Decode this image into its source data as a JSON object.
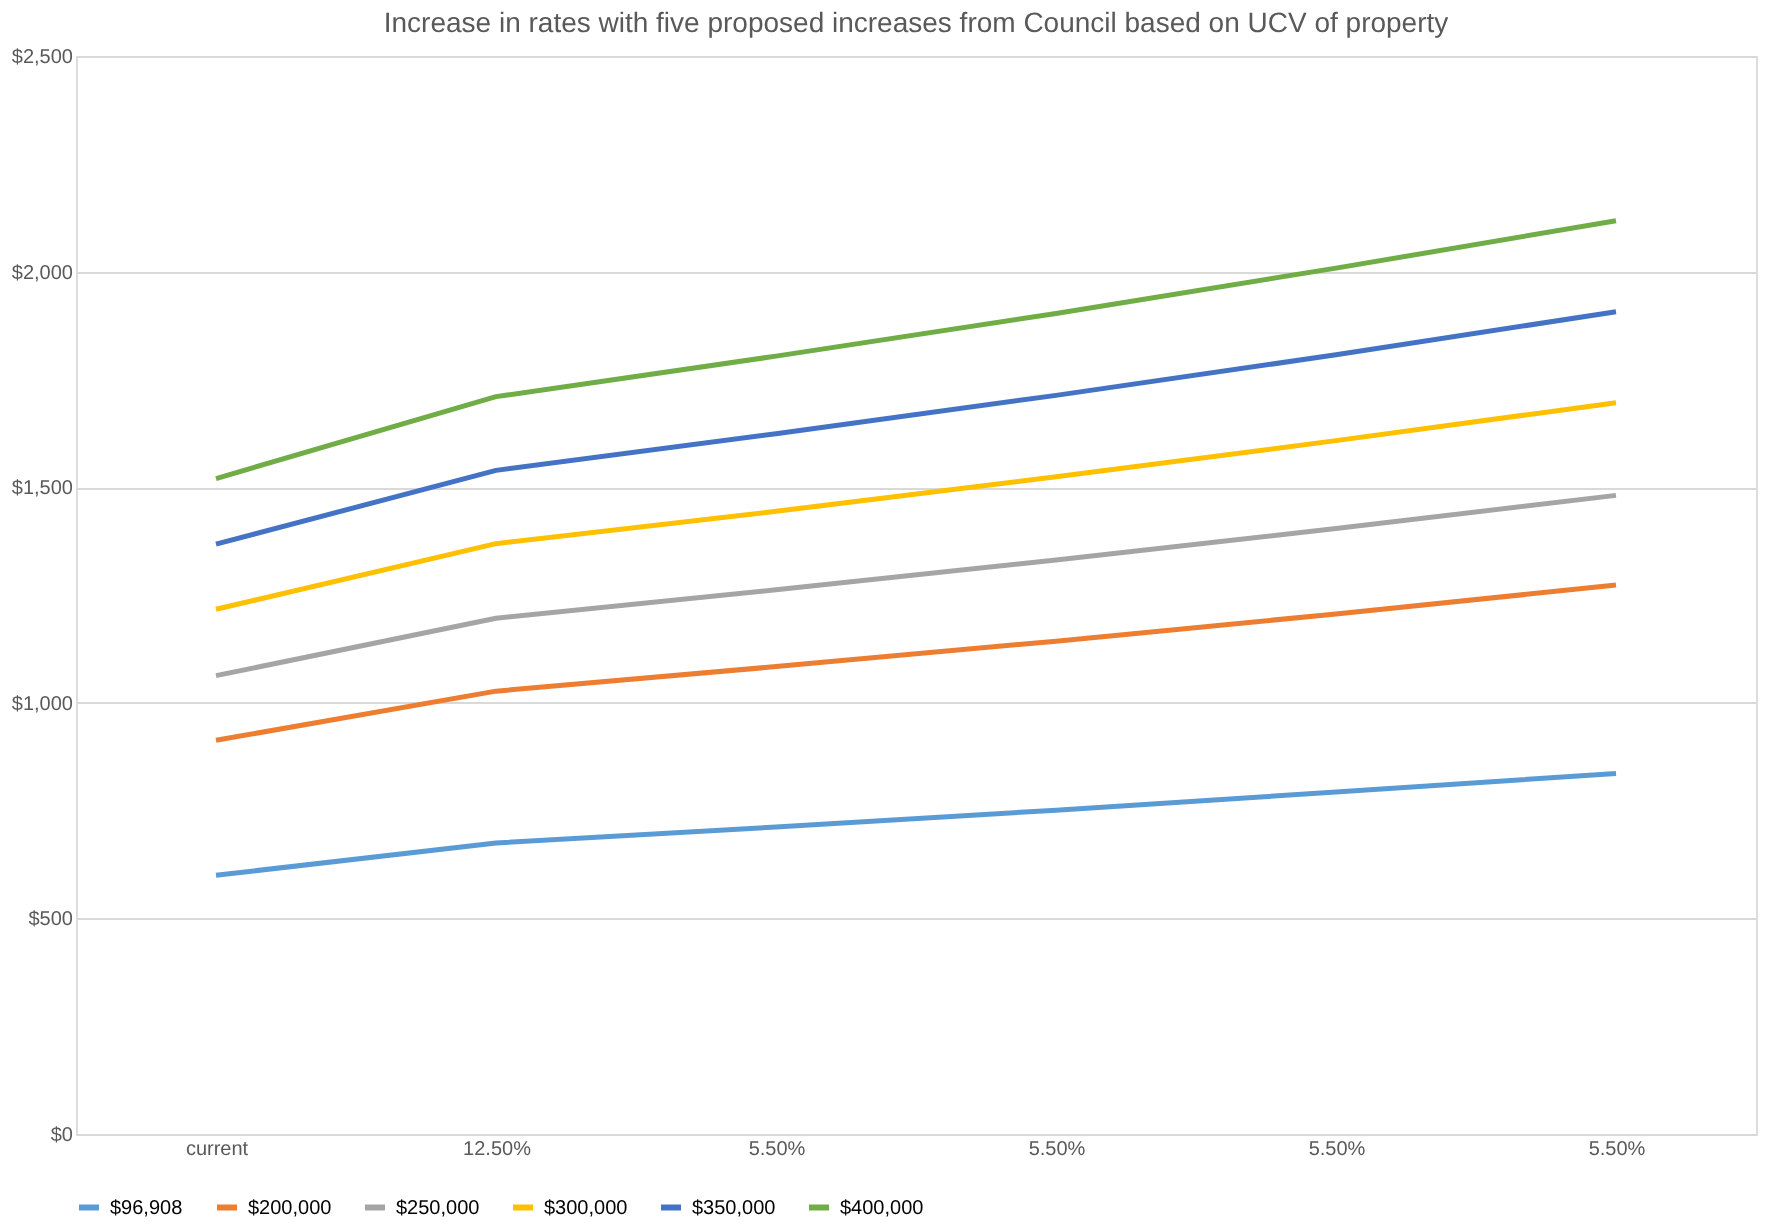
{
  "chart_data": {
    "type": "line",
    "title": "Increase in rates with five proposed increases  from Council based on UCV of property",
    "categories": [
      "current",
      "12.50%",
      "5.50%",
      "5.50%",
      "5.50%",
      "5.50%"
    ],
    "ylim": [
      0,
      2500
    ],
    "yticks": [
      {
        "value": 0,
        "label": "$0"
      },
      {
        "value": 500,
        "label": "$500"
      },
      {
        "value": 1000,
        "label": "$1,000"
      },
      {
        "value": 1500,
        "label": "$1,500"
      },
      {
        "value": 2000,
        "label": "$2,000"
      },
      {
        "value": 2500,
        "label": "$2,500"
      }
    ],
    "grid": "y",
    "legend": "bottom",
    "marker": "none",
    "line_style": "solid",
    "series": [
      {
        "name": "$96,908",
        "color": "#5b9bd5",
        "values": [
          600,
          675,
          712,
          751,
          793,
          836
        ]
      },
      {
        "name": "$200,000",
        "color": "#ed7d31",
        "values": [
          913,
          1027,
          1084,
          1143,
          1206,
          1273
        ]
      },
      {
        "name": "$250,000",
        "color": "#a5a5a5",
        "values": [
          1063,
          1196,
          1262,
          1331,
          1404,
          1481
        ]
      },
      {
        "name": "$300,000",
        "color": "#ffc000",
        "values": [
          1217,
          1369,
          1444,
          1524,
          1608,
          1696
        ]
      },
      {
        "name": "$350,000",
        "color": "#4472c4",
        "values": [
          1368,
          1539,
          1624,
          1713,
          1807,
          1907
        ]
      },
      {
        "name": "$400,000",
        "color": "#70ad47",
        "values": [
          1520,
          1710,
          1804,
          1903,
          2008,
          2118
        ]
      }
    ]
  }
}
